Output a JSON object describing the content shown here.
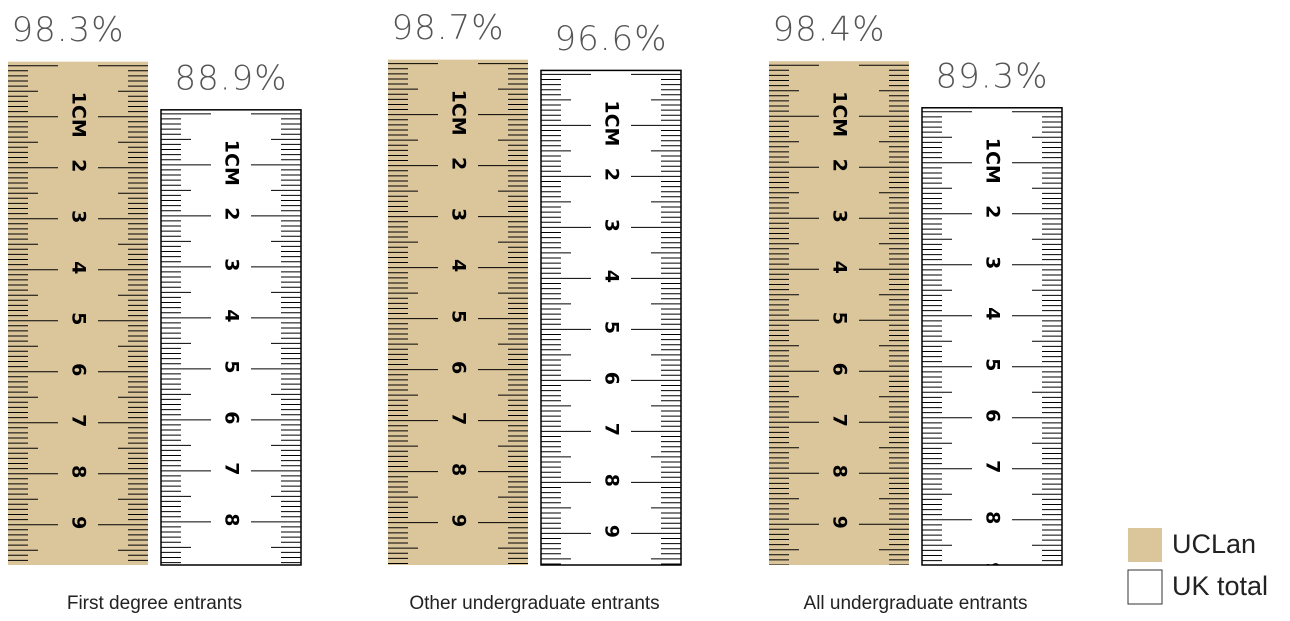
{
  "chart_data": {
    "type": "bar",
    "categories": [
      "First degree entrants",
      "Other undergraduate entrants",
      "All undergraduate entrants"
    ],
    "series": [
      {
        "name": "UCLan",
        "color": "#dbc69c",
        "values": [
          98.3,
          98.7,
          98.4
        ],
        "value_labels": [
          "98.3%",
          "98.7%",
          "98.4%"
        ]
      },
      {
        "name": "UK total",
        "color": "#ffffff",
        "values": [
          88.9,
          96.6,
          89.3
        ],
        "value_labels": [
          "88.9%",
          "96.6%",
          "89.3%"
        ]
      }
    ],
    "legend": "bottom-right"
  },
  "ruler_labels": [
    "1CM",
    "2",
    "3",
    "4",
    "5",
    "6",
    "7",
    "8",
    "9"
  ]
}
